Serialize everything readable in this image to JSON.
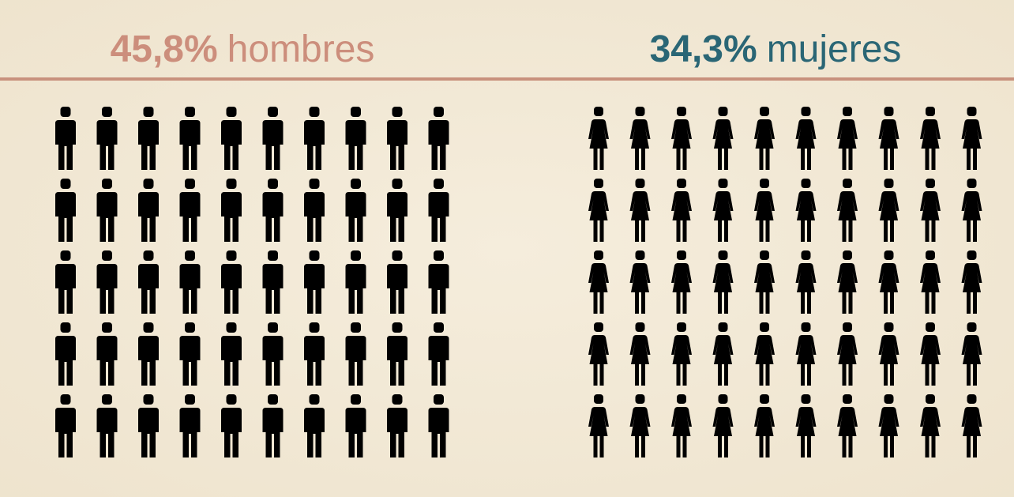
{
  "chart_data": [
    {
      "type": "pictograph",
      "value": 45.8,
      "value_label": "45,8%",
      "label": "hombres",
      "color": "#cc8e7c",
      "icon": "man",
      "scale": [
        0,
        100
      ],
      "icons": 50,
      "columns": 10
    },
    {
      "type": "pictograph",
      "value": 34.3,
      "value_label": "34,3%",
      "label": "mujeres",
      "color": "#2a6675",
      "icon": "woman",
      "scale": [
        0,
        100
      ],
      "icons": 50,
      "columns": 10
    }
  ]
}
